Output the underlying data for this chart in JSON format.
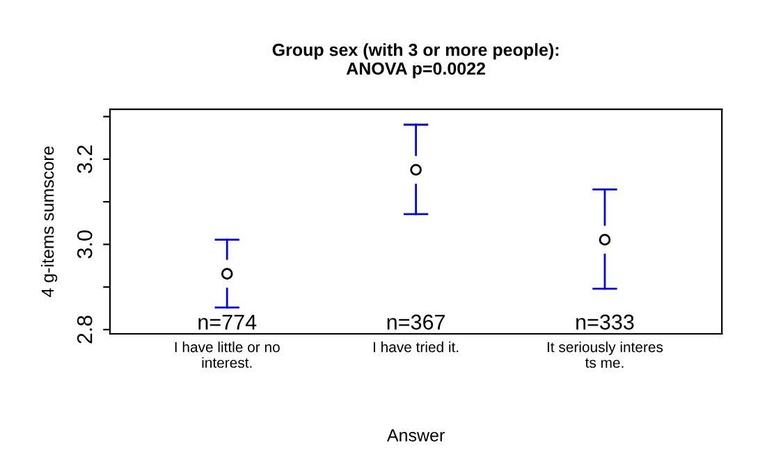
{
  "chart_data": {
    "type": "scatter",
    "title": "Group sex (with 3 or more people):\nANOVA p=0.0022",
    "xlabel": "Answer",
    "ylabel": "4 g-items sumscore",
    "categories": [
      "I have little or no\ninterest.",
      "I have tried it.",
      "It seriously interes\nts me."
    ],
    "series": [
      {
        "color": "#000000",
        "values": [
          2.931,
          3.175,
          3.011
        ],
        "errors": [
          [
            2.852,
            3.011
          ],
          [
            3.071,
            3.281
          ],
          [
            2.896,
            3.129
          ]
        ]
      }
    ],
    "ylim": [
      2.79,
      3.317
    ],
    "yticks": [
      2.8,
      {
        "value": 2.9,
        "label": null
      },
      {
        "value": 3.0,
        "label": "3.0"
      },
      {
        "value": 3.1,
        "label": null
      },
      3.2,
      {
        "value": 3.3,
        "label": null
      }
    ],
    "annotations": [
      "n=774",
      "n=367",
      "n=333"
    ],
    "marker": "circle",
    "grid": false,
    "legend": false
  }
}
